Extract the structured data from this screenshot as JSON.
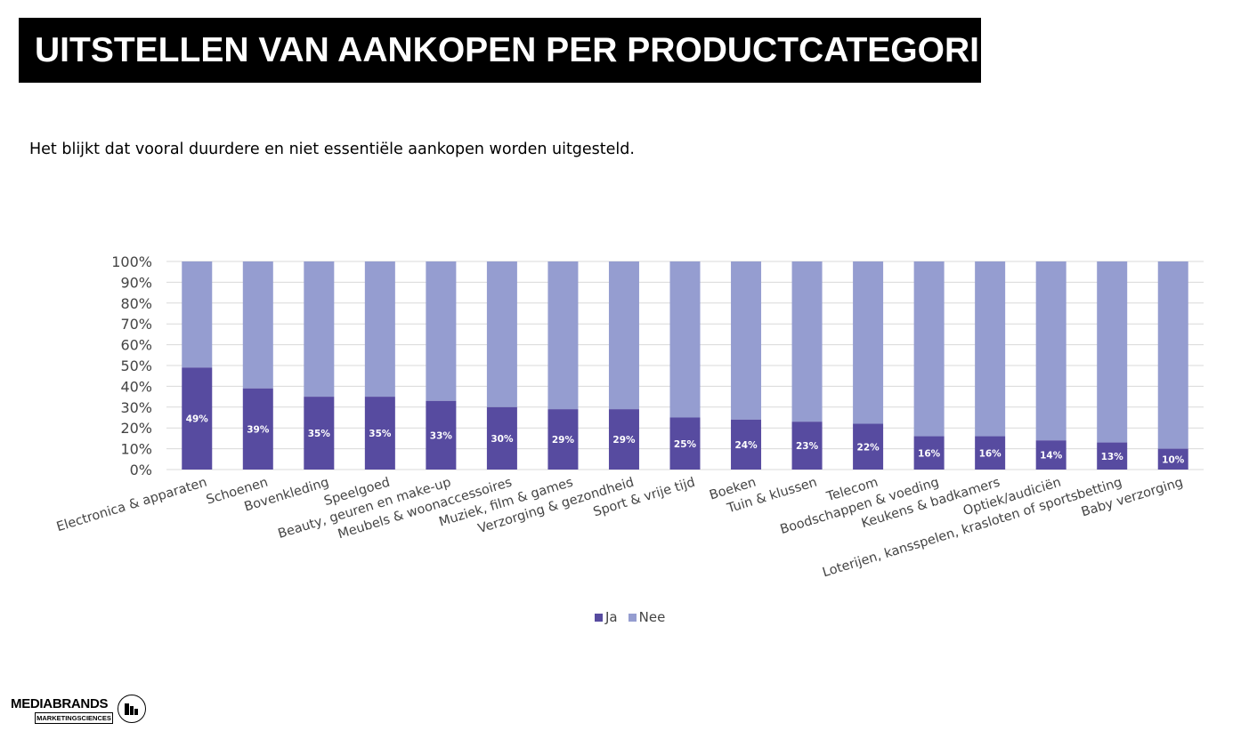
{
  "header": {
    "title": "UITSTELLEN VAN AANKOPEN PER PRODUCTCATEGORIE",
    "subtitle": "Het blijkt dat vooral duurdere en niet essentiële aankopen worden uitgesteld."
  },
  "chart_data": {
    "type": "bar",
    "stacked": true,
    "percent_stacked": true,
    "categories": [
      "Electronica & apparaten",
      "Schoenen",
      "Bovenkleding",
      "Speelgoed",
      "Beauty, geuren en make-up",
      "Meubels & woonaccessoires",
      "Muziek, film & games",
      "Verzorging & gezondheid",
      "Sport & vrije tijd",
      "Boeken",
      "Tuin & klussen",
      "Telecom",
      "Boodschappen & voeding",
      "Keukens & badkamers",
      "Optiek/audiciën",
      "Loterijen, kansspelen, krasloten of sportsbetting",
      "Baby verzorging"
    ],
    "series": [
      {
        "name": "Ja",
        "color": "#574ba0",
        "values": [
          49,
          39,
          35,
          35,
          33,
          30,
          29,
          29,
          25,
          24,
          23,
          22,
          16,
          16,
          14,
          13,
          10
        ],
        "labels": [
          "49%",
          "39%",
          "35%",
          "35%",
          "33%",
          "30%",
          "29%",
          "29%",
          "25%",
          "24%",
          "23%",
          "22%",
          "16%",
          "16%",
          "14%",
          "13%",
          "10%"
        ]
      },
      {
        "name": "Nee",
        "color": "#959dd0",
        "values": [
          51,
          61,
          65,
          65,
          67,
          70,
          71,
          71,
          75,
          76,
          77,
          78,
          84,
          84,
          86,
          87,
          90
        ]
      }
    ],
    "y_ticks": [
      "0%",
      "10%",
      "20%",
      "30%",
      "40%",
      "50%",
      "60%",
      "70%",
      "80%",
      "90%",
      "100%"
    ],
    "ylim": [
      0,
      100
    ],
    "grid": true,
    "legend_position": "bottom"
  },
  "footer": {
    "logo_top": "MEDIABRANDS",
    "logo_bottom": "MARKETINGSCIENCES"
  }
}
